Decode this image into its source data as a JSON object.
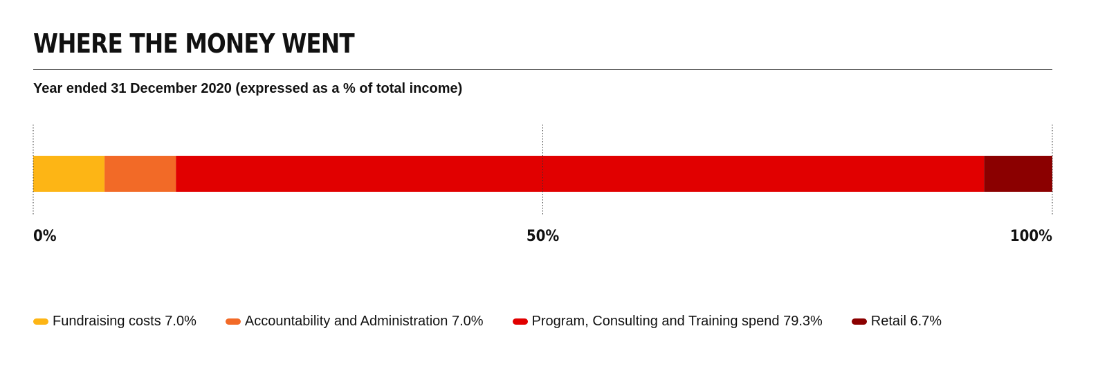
{
  "title": "WHERE THE MONEY WENT",
  "subtitle": "Year ended 31 December 2020 (expressed as a % of total income)",
  "chart_data": {
    "type": "bar",
    "orientation": "horizontal-stacked",
    "xlim": [
      0,
      100
    ],
    "ticks": [
      {
        "value": 0,
        "label": "0%"
      },
      {
        "value": 50,
        "label": "50%"
      },
      {
        "value": 100,
        "label": "100%"
      }
    ],
    "grid": true,
    "legend_position": "bottom",
    "series": [
      {
        "name": "Fundraising costs",
        "value": 7.0,
        "legend_label": "Fundraising costs 7.0%",
        "color": "#FDB515"
      },
      {
        "name": "Accountability and Administration",
        "value": 7.0,
        "legend_label": "Accountability and Administration 7.0%",
        "color": "#F26A27"
      },
      {
        "name": "Program, Consulting and Training spend",
        "value": 79.3,
        "legend_label": "Program, Consulting and Training spend 79.3%",
        "color": "#E10000"
      },
      {
        "name": "Retail",
        "value": 6.7,
        "legend_label": "Retail 6.7%",
        "color": "#8B0000"
      }
    ]
  }
}
